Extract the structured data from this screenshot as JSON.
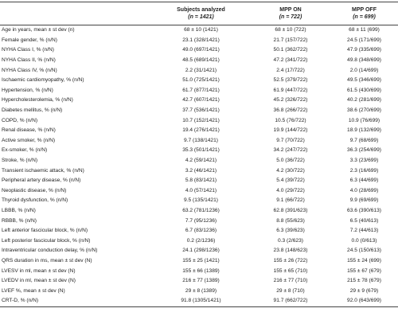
{
  "table": {
    "header": [
      {
        "title": "Subjects analyzed",
        "n": "(n = 1421)"
      },
      {
        "title": "MPP ON",
        "n": "(n = 722)"
      },
      {
        "title": "MPP OFF",
        "n": "(n = 699)"
      }
    ],
    "rows": [
      [
        "Age in years, mean ± st dev (n)",
        "68 ± 10 (1421)",
        "68 ± 10 (722)",
        "68 ± 11 (699)"
      ],
      [
        "Female gender, % (n/N)",
        "23.1 (328/1421)",
        "21.7 (157/722)",
        "24.5 (171/699)"
      ],
      [
        "NYHA Class I, % (n/N)",
        "49.0 (697/1421)",
        "50.1 (362/722)",
        "47.9 (335/699)"
      ],
      [
        "NYHA Class II, % (n/N)",
        "48.5 (689/1421)",
        "47.2 (341/722)",
        "49.8 (348/699)"
      ],
      [
        "NYHA Class IV, % (n/N)",
        "2.2 (31/1421)",
        "2.4 (17/722)",
        "2.0 (14/699)"
      ],
      [
        "Ischaemic cardiomyopathy, % (n/N)",
        "51.0 (725/1421)",
        "52.5 (379/722)",
        "49.5 (346/699)"
      ],
      [
        "Hypertension, % (n/N)",
        "61.7 (877/1421)",
        "61.9 (447/722)",
        "61.5 (430/699)"
      ],
      [
        "Hypercholesterolemia, % (n/N)",
        "42.7 (607/1421)",
        "45.2 (326/722)",
        "40.2 (281/699)"
      ],
      [
        "Diabetes mellitus, % (n/N)",
        "37.7 (536/1421)",
        "36.8 (266/722)",
        "38.6 (270/699)"
      ],
      [
        "COPD, % (n/N)",
        "10.7 (152/1421)",
        "10.5 (76/722)",
        "10.9 (76/699)"
      ],
      [
        "Renal disease, % (n/N)",
        "19.4 (276/1421)",
        "19.9 (144/722)",
        "18.9 (132/699)"
      ],
      [
        "Active smoker, % (n/N)",
        "9.7 (138/1421)",
        "9.7 (70/722)",
        "9.7 (68/699)"
      ],
      [
        "Ex-smoker, % (n/N)",
        "35.3 (501/1421)",
        "34.2 (247/722)",
        "36.3 (254/699)"
      ],
      [
        "Stroke, % (n/N)",
        "4.2 (59/1421)",
        "5.0 (36/722)",
        "3.3 (23/699)"
      ],
      [
        "Transient ischaemic attack, % (n/N)",
        "3.2 (46/1421)",
        "4.2 (30/722)",
        "2.3 (16/699)"
      ],
      [
        "Peripheral artery disease, % (n/N)",
        "5.8 (83/1421)",
        "5.4 (39/722)",
        "6.3 (44/699)"
      ],
      [
        "Neoplastic disease, % (n/N)",
        "4.0 (57/1421)",
        "4.0 (29/722)",
        "4.0 (28/699)"
      ],
      [
        "Thyroid dysfunction, % (n/N)",
        "9.5 (135/1421)",
        "9.1 (66/722)",
        "9.9 (69/699)"
      ],
      [
        "LBBB, % (n/N)",
        "63.2 (781/1236)",
        "62.8 (391/623)",
        "63.6 (390/613)"
      ],
      [
        "RBBB, % (n/N)",
        "7.7 (95/1236)",
        "8.8 (55/623)",
        "6.5 (40/613)"
      ],
      [
        "Left anterior fascicular block, % (n/N)",
        "6.7 (83/1236)",
        "6.3 (39/623)",
        "7.2 (44/613)"
      ],
      [
        "Left posterior fascicular block, % (n/N)",
        "0.2 (2/1236)",
        "0.3 (2/623)",
        "0.0 (0/613)"
      ],
      [
        "Intraventricular conduction delay, % (n/N)",
        "24.1 (298/1236)",
        "23.8 (148/623)",
        "24.5 (150/613)"
      ],
      [
        "QRS duration in ms, mean ± st dev (N)",
        "155 ± 25 (1421)",
        "155 ± 26 (722)",
        "155 ± 24 (699)"
      ],
      [
        "LVESV in ml, mean ± st dev (N)",
        "155 ± 66 (1389)",
        "155 ± 65 (710)",
        "155 ± 67 (679)"
      ],
      [
        "LVEDV in ml, mean ± st dev (N)",
        "216 ± 77 (1389)",
        "216 ± 77 (710)",
        "215 ± 78 (679)"
      ],
      [
        "LVEF %, mean ± st dev (N)",
        "29 ± 8 (1389)",
        "29 ± 8 (710)",
        "29 ± 9 (679)"
      ],
      [
        "CRT-D, % (n/N)",
        "91.8 (1305/1421)",
        "91.7 (662/722)",
        "92.0 (643/699)"
      ]
    ]
  }
}
